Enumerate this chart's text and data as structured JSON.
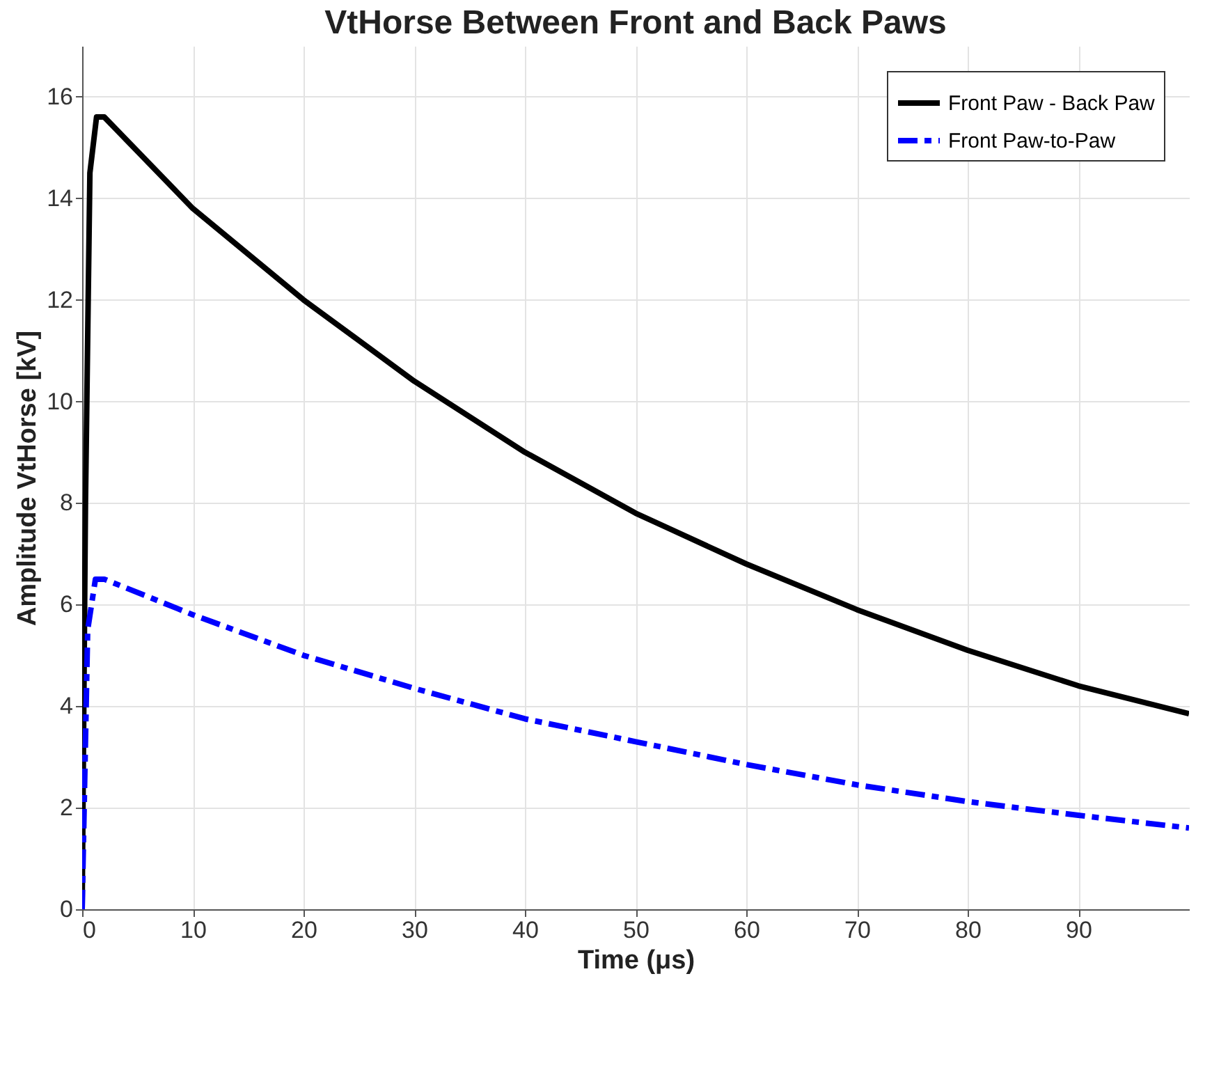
{
  "chart_data": {
    "type": "line",
    "title": "VtHorse Between Front and Back Paws",
    "xlabel": "Time (μs)",
    "ylabel": "Amplitude VtHorse [kV]",
    "xlim": [
      0,
      100
    ],
    "xticks": [
      0,
      10,
      20,
      30,
      40,
      50,
      60,
      70,
      80,
      90
    ],
    "ylim": [
      0,
      17
    ],
    "yticks": [
      0,
      2,
      4,
      6,
      8,
      10,
      12,
      14,
      16
    ],
    "grid": true,
    "legend": "top right",
    "series": [
      {
        "name": "Front Paw - Back Paw",
        "color": "#000000",
        "line_style": "solid",
        "x": [
          0,
          0.3,
          0.7,
          1.3,
          2,
          10,
          20,
          30,
          40,
          50,
          60,
          70,
          80,
          90,
          100
        ],
        "values": [
          0,
          8,
          14.5,
          15.6,
          15.6,
          13.8,
          12.0,
          10.4,
          9.0,
          7.8,
          6.8,
          5.9,
          5.1,
          4.4,
          3.85
        ]
      },
      {
        "name": "Front Paw-to-Paw",
        "color": "#0000ff",
        "line_style": "dashed",
        "x": [
          0,
          0.5,
          1.2,
          2,
          10,
          20,
          30,
          40,
          50,
          60,
          70,
          80,
          90,
          100
        ],
        "values": [
          0,
          5.5,
          6.5,
          6.5,
          5.8,
          5.0,
          4.35,
          3.75,
          3.3,
          2.85,
          2.45,
          2.12,
          1.85,
          1.6
        ]
      }
    ]
  }
}
